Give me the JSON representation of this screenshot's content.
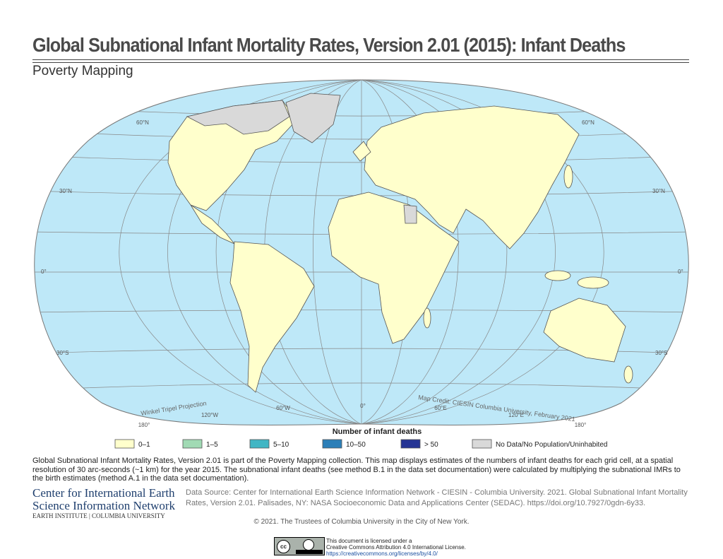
{
  "header": {
    "title": "Global Subnational Infant Mortality Rates, Version 2.01 (2015): Infant Deaths",
    "subtitle": "Poverty Mapping"
  },
  "map": {
    "latitudes": [
      "60°N",
      "30°N",
      "0°",
      "30°S"
    ],
    "longitudes": [
      "180°",
      "120°W",
      "60°W",
      "0°",
      "60°E",
      "120°E",
      "180°"
    ],
    "projection": "Winkel Tripel Projection",
    "credit": "Map Credit: CIESIN Columbia University, February 2021"
  },
  "legend": {
    "title": "Number of infant deaths",
    "items": [
      {
        "label": "0–1",
        "color": "#ffffcc"
      },
      {
        "label": "1–5",
        "color": "#a1dab4"
      },
      {
        "label": "5–10",
        "color": "#41b6c4"
      },
      {
        "label": "10–50",
        "color": "#2c7fb8"
      },
      {
        "label": "> 50",
        "color": "#253494"
      },
      {
        "label": "No Data/No Population/Uninhabited",
        "color": "#d9d9d9"
      }
    ]
  },
  "description": "Global Subnational Infant Mortality Rates, Version 2.01 is part of the Poverty Mapping collection. This map displays estimates of the numbers of infant deaths for each grid cell, at a spatial resolution of 30 arc-seconds (~1 km) for the year 2015. The subnational infant deaths (see method B.1 in the data set documentation) were calculated by multiplying the subnational IMRs to the birth estimates (method A.1 in the data set documentation).",
  "organization": {
    "line1": "Center for International Earth",
    "line2": "Science Information Network",
    "line3": "EARTH INSTITUTE | COLUMBIA UNIVERSITY"
  },
  "source": "Data Source: Center for International Earth Science Information Network - CIESIN - Columbia University. 2021. Global Subnational Infant Mortality Rates, Version 2.01. Palisades, NY: NASA Socioeconomic Data and Applications Center (SEDAC). https://doi.org/10.7927/0gdn-6y33.",
  "copyright": "© 2021. The Trustees of Columbia University in the City of New York.",
  "license": {
    "line1": "This document is licensed under a",
    "line2": "Creative Commons Attribution 4.0 International License.",
    "url": "https://creativecommons.org/licenses/by/4.0/"
  }
}
